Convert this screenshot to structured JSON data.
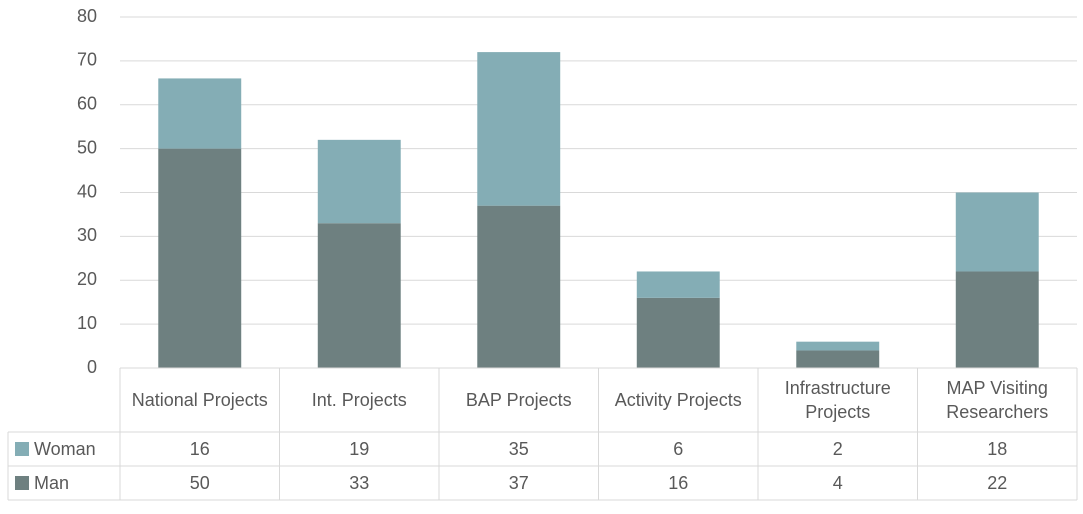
{
  "chart_data": {
    "type": "bar",
    "stacked": true,
    "categories": [
      "National Projects",
      "Int. Projects",
      "BAP Projects",
      "Activity Projects",
      "Infrastructure Projects",
      "MAP Visiting Researchers"
    ],
    "series": [
      {
        "name": "Woman",
        "color": "#84adb5",
        "values": [
          16,
          19,
          35,
          6,
          2,
          18
        ]
      },
      {
        "name": "Man",
        "color": "#6e8080",
        "values": [
          50,
          33,
          37,
          16,
          4,
          22
        ]
      }
    ],
    "ylim": [
      0,
      80
    ],
    "yticks": [
      0,
      10,
      20,
      30,
      40,
      50,
      60,
      70,
      80
    ],
    "grid": true,
    "data_table": true
  }
}
